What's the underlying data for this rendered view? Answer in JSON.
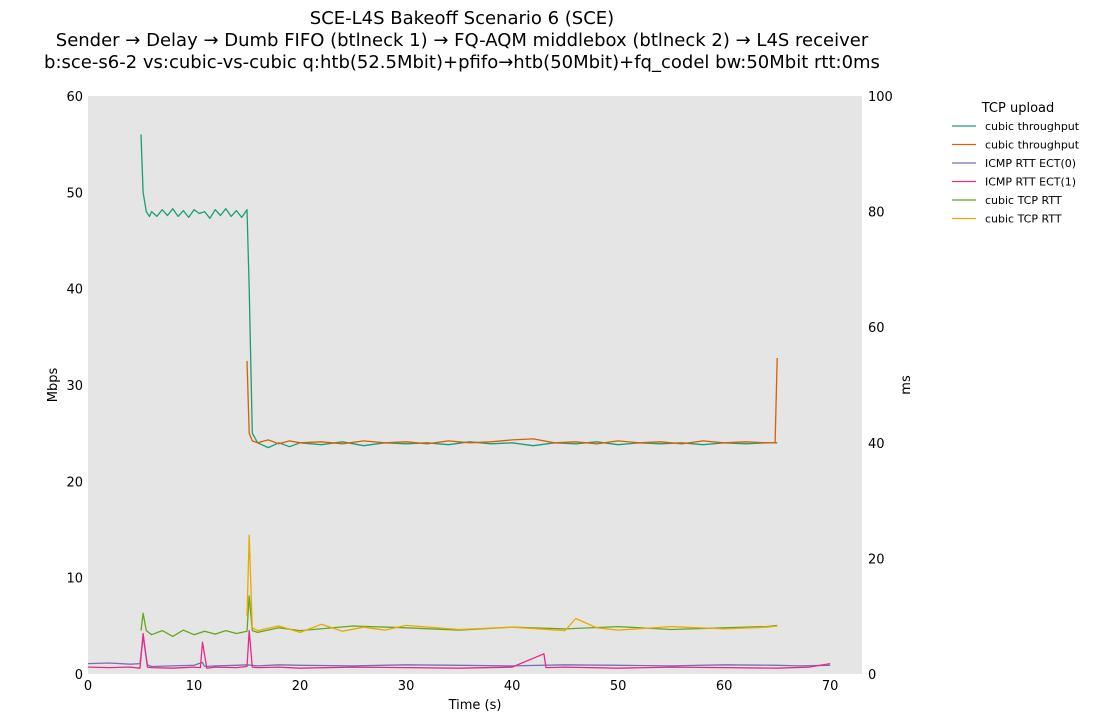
{
  "chart_data": {
    "type": "line",
    "title": [
      "SCE-L4S Bakeoff Scenario 6 (SCE)",
      "Sender → Delay → Dumb FIFO (btlneck 1) → FQ-AQM middlebox (btlneck 2) → L4S receiver",
      "b:sce-s6-2 vs:cubic-vs-cubic q:htb(52.5Mbit)+pfifo→htb(50Mbit)+fq_codel bw:50Mbit rtt:0ms"
    ],
    "xlabel": "Time (s)",
    "ylabel_left": "Mbps",
    "ylabel_right": "ms",
    "xlim": [
      0,
      73
    ],
    "ylim_left": [
      0,
      60
    ],
    "ylim_right": [
      0,
      100
    ],
    "xticks": [
      0,
      10,
      20,
      30,
      40,
      50,
      60,
      70
    ],
    "yticks_left": [
      0,
      10,
      20,
      30,
      40,
      50,
      60
    ],
    "yticks_right": [
      0,
      20,
      40,
      60,
      80,
      100
    ],
    "grid": false,
    "legend_title": "TCP upload",
    "legend_position": "outside-right",
    "series": [
      {
        "name": "cubic throughput",
        "axis": "left",
        "color": "#1b9e77",
        "x": [
          5.0,
          5.2,
          5.5,
          5.8,
          6,
          6.5,
          7,
          7.5,
          8,
          8.5,
          9,
          9.5,
          10,
          10.5,
          11,
          11.5,
          12,
          12.5,
          13,
          13.5,
          14,
          14.5,
          15.0,
          15.2,
          15.5,
          16,
          17,
          18,
          19,
          20,
          22,
          24,
          26,
          28,
          30,
          32,
          34,
          36,
          38,
          40,
          42,
          44,
          46,
          48,
          50,
          52,
          54,
          56,
          58,
          60,
          62,
          64,
          65
        ],
        "y": [
          56,
          50,
          48,
          47.5,
          48,
          47.5,
          48.2,
          47.6,
          48.3,
          47.5,
          48.1,
          47.4,
          48.2,
          47.8,
          48,
          47.3,
          48.2,
          47.6,
          48.3,
          47.5,
          48.1,
          47.4,
          48.2,
          40,
          25,
          24,
          23.5,
          24,
          23.6,
          24,
          23.8,
          24.1,
          23.7,
          24,
          23.9,
          24,
          23.8,
          24.1,
          23.9,
          24,
          23.7,
          24,
          23.9,
          24.1,
          23.8,
          24,
          23.9,
          24,
          23.8,
          24,
          23.9,
          24,
          24
        ]
      },
      {
        "name": "cubic throughput",
        "axis": "left",
        "color": "#d95f02",
        "x": [
          15.0,
          15.2,
          15.5,
          16,
          17,
          18,
          19,
          20,
          22,
          24,
          26,
          28,
          30,
          32,
          34,
          36,
          38,
          40,
          42,
          44,
          46,
          48,
          50,
          52,
          54,
          56,
          58,
          60,
          62,
          64,
          64.8,
          65
        ],
        "y": [
          32.5,
          25,
          24.2,
          24,
          24.3,
          23.9,
          24.2,
          24,
          24.1,
          23.9,
          24.2,
          24,
          24.1,
          23.9,
          24.2,
          24,
          24.1,
          24.3,
          24.4,
          24,
          24.1,
          23.9,
          24.2,
          24,
          24.1,
          23.9,
          24.2,
          24,
          24.1,
          24,
          24,
          32.8
        ]
      },
      {
        "name": "ICMP RTT ECT(0)",
        "axis": "right",
        "color": "#7570b3",
        "x": [
          0,
          2,
          4,
          4.9,
          5.2,
          5.6,
          6,
          8,
          10,
          10.8,
          11,
          12,
          14,
          15,
          16,
          18,
          20,
          25,
          30,
          35,
          40,
          45,
          50,
          55,
          60,
          65,
          67,
          70
        ],
        "y": [
          1.8,
          1.9,
          1.7,
          1.8,
          6.5,
          1.6,
          1.3,
          1.4,
          1.5,
          2.0,
          1.3,
          1.4,
          1.5,
          1.6,
          1.4,
          1.6,
          1.5,
          1.4,
          1.6,
          1.5,
          1.4,
          1.6,
          1.5,
          1.4,
          1.6,
          1.5,
          1.4,
          1.5
        ]
      },
      {
        "name": "ICMP RTT ECT(1)",
        "axis": "right",
        "color": "#e7298a",
        "x": [
          0,
          2,
          4,
          4.9,
          5.2,
          5.6,
          6,
          8,
          10,
          10.6,
          10.8,
          11.2,
          12,
          14,
          15,
          15.2,
          15.5,
          16,
          18,
          20,
          25,
          30,
          35,
          40,
          43,
          43.2,
          45,
          50,
          55,
          60,
          65,
          68,
          70
        ],
        "y": [
          1.2,
          1.1,
          1.2,
          1.0,
          7.0,
          1.2,
          1.1,
          1.0,
          1.2,
          1.1,
          5.5,
          1.0,
          1.2,
          1.1,
          1.3,
          7.5,
          1.2,
          1.1,
          1.2,
          1.0,
          1.2,
          1.1,
          1.0,
          1.2,
          3.5,
          1.1,
          1.2,
          1.0,
          1.2,
          1.1,
          1.0,
          1.2,
          1.8
        ]
      },
      {
        "name": "cubic TCP RTT",
        "axis": "right",
        "color": "#66a61e",
        "x": [
          5.0,
          5.2,
          5.5,
          6,
          7,
          8,
          9,
          10,
          11,
          12,
          13,
          14,
          15.0,
          15.2,
          15.5,
          16,
          18,
          20,
          25,
          30,
          35,
          40,
          45,
          50,
          55,
          60,
          64,
          65
        ],
        "y": [
          7.5,
          10.5,
          7.5,
          6.8,
          7.5,
          6.5,
          7.6,
          6.8,
          7.4,
          6.9,
          7.5,
          7.0,
          7.4,
          13.5,
          7.5,
          7.2,
          8.0,
          7.5,
          8.3,
          8.0,
          7.6,
          8.1,
          7.8,
          8.2,
          7.7,
          8.0,
          8.2,
          8.4
        ]
      },
      {
        "name": "cubic TCP RTT",
        "axis": "right",
        "color": "#e6ab02",
        "x": [
          15.0,
          15.2,
          15.5,
          16,
          18,
          20,
          22,
          24,
          26,
          28,
          30,
          35,
          40,
          45,
          46,
          48,
          50,
          55,
          60,
          64,
          65
        ],
        "y": [
          10,
          24,
          8,
          7.5,
          8.3,
          7.2,
          8.6,
          7.4,
          8.1,
          7.6,
          8.4,
          7.7,
          8.1,
          7.5,
          9.6,
          8.0,
          7.6,
          8.2,
          7.8,
          8.1,
          8.3
        ]
      }
    ]
  }
}
